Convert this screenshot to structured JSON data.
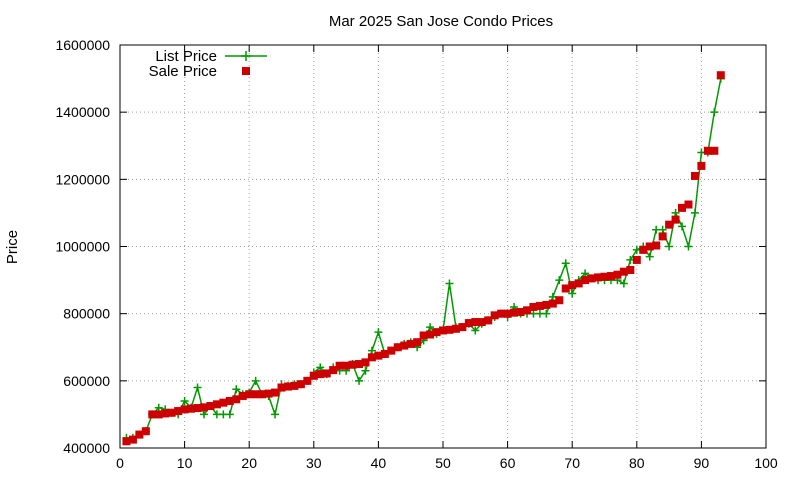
{
  "chart_data": {
    "type": "scatter",
    "title": "Mar 2025 San Jose Condo Prices",
    "xlabel": "",
    "ylabel": "Price",
    "xlim": [
      0,
      100
    ],
    "ylim": [
      400000,
      1600000
    ],
    "xticks": [
      0,
      10,
      20,
      30,
      40,
      50,
      60,
      70,
      80,
      90,
      100
    ],
    "yticks": [
      400000,
      600000,
      800000,
      1000000,
      1200000,
      1400000,
      1600000
    ],
    "grid": true,
    "legend_position": "top-left",
    "series": [
      {
        "name": "List Price",
        "style": "linespoints",
        "color": "#009900",
        "x": [
          1,
          2,
          3,
          4,
          5,
          6,
          7,
          8,
          9,
          10,
          11,
          12,
          13,
          14,
          15,
          16,
          17,
          18,
          19,
          20,
          21,
          22,
          23,
          24,
          25,
          26,
          27,
          28,
          29,
          30,
          31,
          32,
          33,
          34,
          35,
          36,
          37,
          38,
          39,
          40,
          41,
          42,
          43,
          44,
          45,
          46,
          47,
          48,
          49,
          50,
          51,
          52,
          53,
          54,
          55,
          56,
          57,
          58,
          59,
          60,
          61,
          62,
          63,
          64,
          65,
          66,
          67,
          68,
          69,
          70,
          71,
          72,
          73,
          74,
          75,
          76,
          77,
          78,
          79,
          80,
          81,
          82,
          83,
          84,
          85,
          86,
          87,
          88,
          89,
          90,
          91,
          92,
          93
        ],
        "values": [
          430000,
          430000,
          440000,
          450000,
          500000,
          520000,
          515000,
          505000,
          500000,
          540000,
          520000,
          580000,
          500000,
          525000,
          500000,
          500000,
          500000,
          575000,
          560000,
          565000,
          600000,
          560000,
          555000,
          500000,
          590000,
          585000,
          590000,
          590000,
          600000,
          625000,
          640000,
          620000,
          640000,
          630000,
          630000,
          650000,
          600000,
          630000,
          690000,
          745000,
          680000,
          690000,
          700000,
          710000,
          715000,
          700000,
          720000,
          760000,
          740000,
          750000,
          890000,
          760000,
          760000,
          770000,
          750000,
          770000,
          780000,
          790000,
          800000,
          790000,
          820000,
          800000,
          800000,
          800000,
          800000,
          800000,
          850000,
          900000,
          950000,
          860000,
          900000,
          920000,
          905000,
          900000,
          900000,
          900000,
          900000,
          890000,
          960000,
          990000,
          1000000,
          970000,
          1050000,
          1050000,
          1000000,
          1100000,
          1060000,
          1000000,
          1100000,
          1280000,
          1280000,
          1400000,
          1500000
        ]
      },
      {
        "name": "Sale Price",
        "style": "points",
        "color": "#cc0000",
        "x": [
          1,
          2,
          3,
          4,
          5,
          6,
          7,
          8,
          9,
          10,
          11,
          12,
          13,
          14,
          15,
          16,
          17,
          18,
          19,
          20,
          21,
          22,
          23,
          24,
          25,
          26,
          27,
          28,
          29,
          30,
          31,
          32,
          33,
          34,
          35,
          36,
          37,
          38,
          39,
          40,
          41,
          42,
          43,
          44,
          45,
          46,
          47,
          48,
          49,
          50,
          51,
          52,
          53,
          54,
          55,
          56,
          57,
          58,
          59,
          60,
          61,
          62,
          63,
          64,
          65,
          66,
          67,
          68,
          69,
          70,
          71,
          72,
          73,
          74,
          75,
          76,
          77,
          78,
          79,
          80,
          81,
          82,
          83,
          84,
          85,
          86,
          87,
          88,
          89,
          90,
          91,
          92,
          93
        ],
        "values": [
          420000,
          425000,
          440000,
          450000,
          500000,
          500000,
          503000,
          505000,
          510000,
          515000,
          517000,
          519000,
          521000,
          525000,
          530000,
          535000,
          540000,
          545000,
          555000,
          560000,
          560000,
          560000,
          562000,
          565000,
          580000,
          583000,
          585000,
          590000,
          600000,
          615000,
          620000,
          622000,
          632000,
          645000,
          645000,
          648000,
          650000,
          655000,
          670000,
          675000,
          680000,
          690000,
          700000,
          705000,
          710000,
          715000,
          735000,
          738000,
          745000,
          750000,
          752000,
          755000,
          760000,
          772000,
          775000,
          775000,
          780000,
          795000,
          800000,
          800000,
          803000,
          805000,
          810000,
          820000,
          823000,
          826000,
          830000,
          840000,
          875000,
          885000,
          890000,
          900000,
          905000,
          908000,
          910000,
          912000,
          916000,
          925000,
          930000,
          960000,
          990000,
          1000000,
          1003000,
          1030000,
          1065000,
          1080000,
          1115000,
          1125000,
          1210000,
          1240000,
          1285000,
          1285000,
          1510000
        ]
      }
    ]
  }
}
